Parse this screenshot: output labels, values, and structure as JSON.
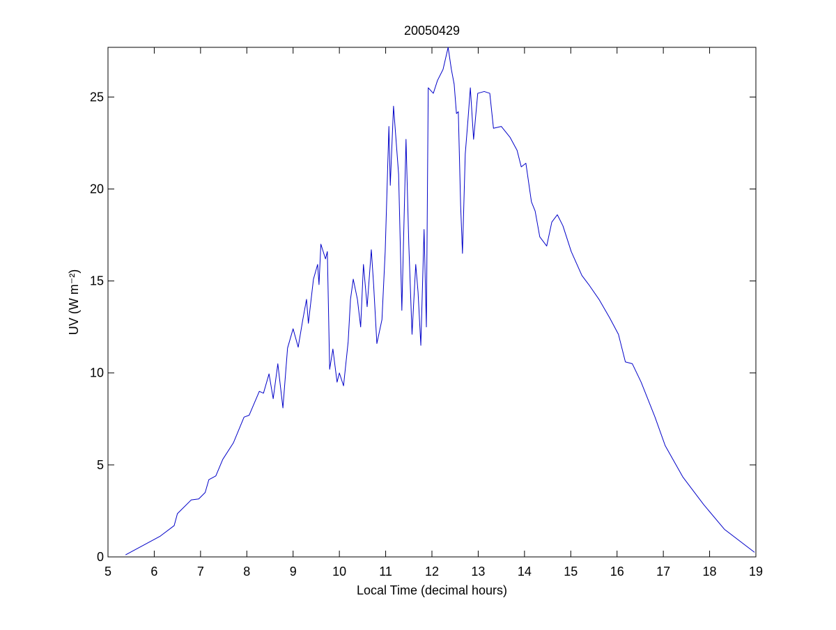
{
  "chart_data": {
    "type": "line",
    "title": "20050429",
    "xlabel": "Local Time (decimal hours)",
    "ylabel": "UV (W m⁻²)",
    "color": "#0000c8",
    "xlim": [
      5,
      19
    ],
    "ylim": [
      0,
      27.7
    ],
    "xticks": [
      5,
      6,
      7,
      8,
      9,
      10,
      11,
      12,
      13,
      14,
      15,
      16,
      17,
      18,
      19
    ],
    "yticks": [
      0,
      5,
      10,
      15,
      20,
      25
    ],
    "x": [
      5.38,
      6.13,
      6.43,
      6.5,
      6.8,
      6.96,
      7.1,
      7.18,
      7.33,
      7.48,
      7.71,
      7.94,
      8.05,
      8.27,
      8.36,
      8.48,
      8.57,
      8.67,
      8.78,
      8.88,
      9.0,
      9.11,
      9.21,
      9.29,
      9.33,
      9.44,
      9.53,
      9.56,
      9.6,
      9.7,
      9.74,
      9.79,
      9.86,
      9.95,
      10.0,
      10.09,
      10.19,
      10.24,
      10.3,
      10.39,
      10.46,
      10.52,
      10.6,
      10.69,
      10.74,
      10.81,
      10.92,
      10.99,
      11.07,
      11.1,
      11.17,
      11.28,
      11.35,
      11.44,
      11.5,
      11.57,
      11.65,
      11.7,
      11.76,
      11.83,
      11.88,
      11.92,
      12.03,
      12.12,
      12.24,
      12.35,
      12.42,
      12.48,
      12.53,
      12.57,
      12.62,
      12.66,
      12.72,
      12.78,
      12.83,
      12.9,
      12.99,
      13.13,
      13.25,
      13.33,
      13.5,
      13.69,
      13.84,
      13.93,
      14.03,
      14.15,
      14.23,
      14.33,
      14.48,
      14.59,
      14.71,
      14.83,
      15.01,
      15.24,
      15.39,
      15.61,
      15.84,
      16.03,
      16.18,
      16.33,
      16.52,
      16.82,
      17.04,
      17.42,
      17.87,
      18.32,
      18.97
    ],
    "values": [
      0.11,
      1.13,
      1.7,
      2.35,
      3.1,
      3.15,
      3.5,
      4.2,
      4.4,
      5.3,
      6.2,
      7.6,
      7.7,
      9.0,
      8.9,
      9.95,
      8.6,
      10.5,
      8.1,
      11.35,
      12.4,
      11.4,
      12.9,
      14.0,
      12.7,
      15.1,
      15.9,
      14.8,
      17.0,
      16.2,
      16.6,
      10.2,
      11.3,
      9.5,
      10.0,
      9.3,
      11.7,
      14.0,
      15.1,
      14.0,
      12.5,
      15.9,
      13.6,
      16.7,
      14.8,
      11.6,
      12.9,
      16.6,
      23.4,
      20.2,
      24.5,
      20.8,
      13.4,
      22.7,
      17.0,
      12.1,
      15.9,
      14.4,
      11.5,
      17.8,
      12.5,
      25.5,
      25.2,
      25.9,
      26.5,
      27.7,
      26.5,
      25.7,
      24.1,
      24.2,
      19.1,
      16.5,
      21.9,
      23.8,
      25.5,
      22.7,
      25.2,
      25.3,
      25.2,
      23.3,
      23.4,
      22.8,
      22.1,
      21.2,
      21.4,
      19.3,
      18.8,
      17.4,
      16.9,
      18.2,
      18.6,
      18.0,
      16.6,
      15.3,
      14.8,
      14.0,
      13.0,
      12.1,
      10.6,
      10.5,
      9.5,
      7.6,
      6.05,
      4.35,
      2.85,
      1.5,
      0.25
    ]
  }
}
